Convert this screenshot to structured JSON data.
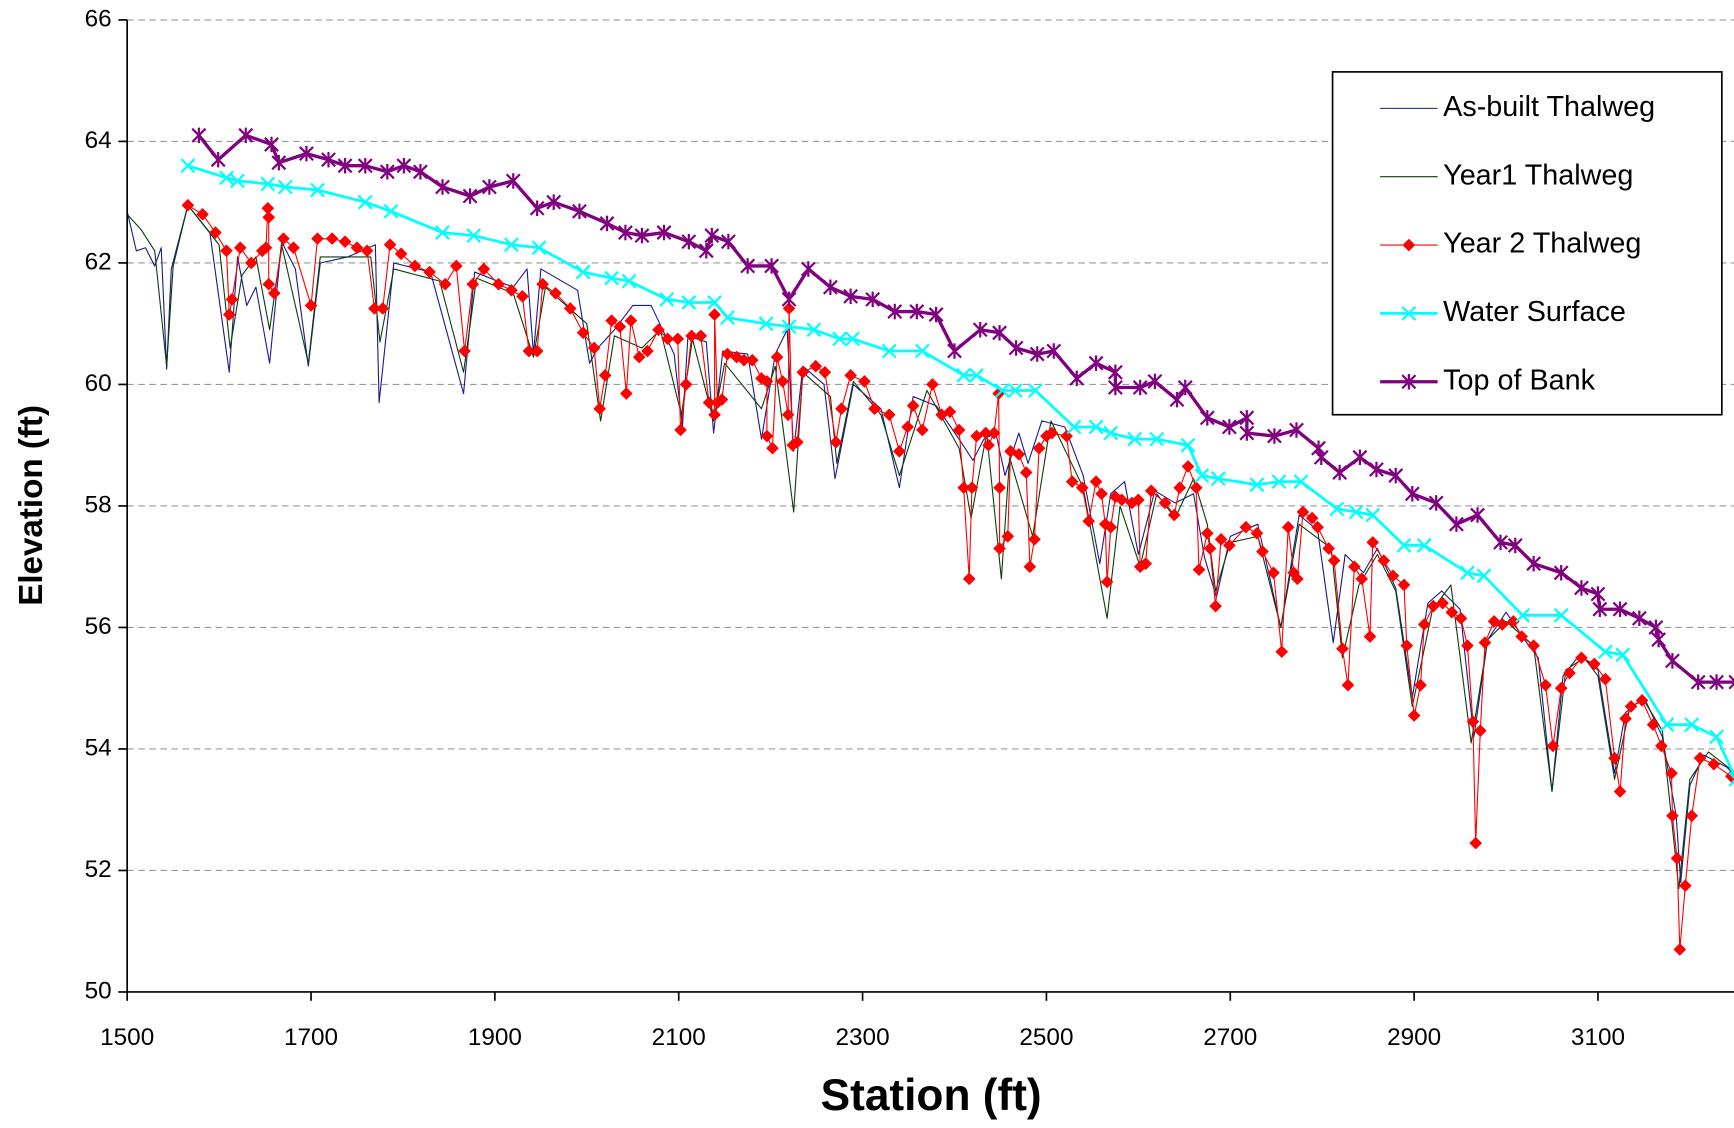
{
  "chart_data": {
    "type": "line",
    "x_label": "Station (ft)",
    "y_label": "Elevation (ft)",
    "xlim": [
      1500,
      3250
    ],
    "xticks": [
      1500,
      1700,
      1900,
      2100,
      2300,
      2500,
      2700,
      2900,
      3100
    ],
    "ylim": [
      50,
      66
    ],
    "yticks": [
      50,
      52,
      54,
      56,
      58,
      60,
      62,
      64,
      66
    ],
    "grid": true,
    "legend": "upper right",
    "series": [
      {
        "name": "As-built Thalweg",
        "color": "#1a1a8c",
        "width": 1,
        "marker": null,
        "x": [
          1500,
          1510,
          1520,
          1530,
          1537,
          1543,
          1548,
          1566,
          1590,
          1611,
          1620,
          1630,
          1640,
          1655,
          1668,
          1683,
          1697,
          1710,
          1740,
          1770,
          1774,
          1790,
          1830,
          1866,
          1878,
          1920,
          1935,
          1942,
          1950,
          1990,
          2003,
          2012,
          2030,
          2050,
          2070,
          2095,
          2104,
          2110,
          2130,
          2138,
          2148,
          2175,
          2190,
          2205,
          2218,
          2225,
          2235,
          2258,
          2270,
          2290,
          2320,
          2340,
          2355,
          2380,
          2405,
          2420,
          2432,
          2445,
          2455,
          2470,
          2480,
          2495,
          2520,
          2540,
          2558,
          2570,
          2585,
          2600,
          2618,
          2640,
          2660,
          2672,
          2685,
          2700,
          2730,
          2755,
          2775,
          2795,
          2812,
          2825,
          2845,
          2860,
          2880,
          2898,
          2915,
          2930,
          2950,
          2965,
          2980,
          3000,
          3020,
          3035,
          3050,
          3062,
          3080,
          3100,
          3118,
          3130,
          3150,
          3170,
          3185,
          3190,
          3200,
          3215,
          3240,
          3250
        ],
        "values": [
          62.85,
          62.2,
          62.25,
          61.95,
          62.25,
          60.25,
          61.9,
          62.95,
          62.5,
          60.2,
          62.1,
          61.3,
          61.6,
          60.35,
          62.35,
          61.9,
          60.3,
          62.0,
          62.1,
          62.3,
          59.7,
          62.0,
          61.85,
          59.85,
          61.85,
          61.6,
          61.9,
          60.5,
          61.9,
          61.55,
          60.35,
          60.6,
          60.9,
          61.3,
          61.3,
          60.5,
          59.3,
          60.8,
          60.7,
          59.2,
          60.55,
          60.5,
          59.1,
          60.5,
          60.9,
          58.9,
          60.3,
          60.0,
          58.45,
          60.0,
          59.6,
          58.3,
          59.8,
          59.65,
          59.1,
          58.75,
          59.1,
          59.2,
          58.5,
          59.2,
          58.7,
          59.4,
          59.3,
          58.5,
          57.05,
          58.2,
          58.4,
          57.2,
          58.25,
          58.05,
          58.2,
          57.15,
          56.5,
          57.5,
          57.7,
          56.0,
          57.85,
          57.6,
          55.75,
          57.2,
          56.9,
          57.3,
          56.65,
          54.85,
          56.4,
          56.6,
          56.3,
          54.2,
          55.8,
          56.25,
          55.8,
          55.5,
          53.3,
          55.2,
          55.55,
          55.3,
          53.6,
          54.6,
          54.85,
          54.2,
          52.9,
          51.8,
          53.4,
          53.9,
          53.7,
          53.55
        ]
      },
      {
        "name": "Year1 Thalweg",
        "color": "#0b3d0b",
        "width": 1,
        "marker": null,
        "x": [
          1500,
          1515,
          1530,
          1543,
          1550,
          1566,
          1600,
          1612,
          1625,
          1640,
          1655,
          1668,
          1697,
          1710,
          1765,
          1775,
          1790,
          1840,
          1866,
          1880,
          1920,
          1942,
          1955,
          2000,
          2015,
          2030,
          2060,
          2080,
          2103,
          2115,
          2138,
          2150,
          2190,
          2205,
          2225,
          2235,
          2265,
          2272,
          2290,
          2320,
          2340,
          2370,
          2405,
          2418,
          2435,
          2451,
          2460,
          2485,
          2505,
          2540,
          2566,
          2580,
          2602,
          2620,
          2640,
          2660,
          2675,
          2684,
          2700,
          2730,
          2755,
          2775,
          2810,
          2822,
          2840,
          2860,
          2880,
          2898,
          2920,
          2940,
          2962,
          2980,
          3000,
          3030,
          3050,
          3065,
          3085,
          3100,
          3118,
          3135,
          3150,
          3170,
          3188,
          3200,
          3220,
          3250
        ],
        "values": [
          62.8,
          62.55,
          62.2,
          60.3,
          61.95,
          62.95,
          62.3,
          60.6,
          61.8,
          62.1,
          60.9,
          62.3,
          60.35,
          62.1,
          62.1,
          60.7,
          61.9,
          61.7,
          60.2,
          61.75,
          61.5,
          60.45,
          61.6,
          61.0,
          59.4,
          60.8,
          60.6,
          60.9,
          59.5,
          60.75,
          59.4,
          60.35,
          59.6,
          60.3,
          57.9,
          60.2,
          59.8,
          58.7,
          60.05,
          59.5,
          58.5,
          59.9,
          58.95,
          57.8,
          59.2,
          56.8,
          58.8,
          57.5,
          59.4,
          58.3,
          56.15,
          58.0,
          57.0,
          58.2,
          57.8,
          58.45,
          57.7,
          56.6,
          57.4,
          57.5,
          56.0,
          57.7,
          57.3,
          55.5,
          56.7,
          57.2,
          56.6,
          54.7,
          56.3,
          56.7,
          54.1,
          55.8,
          56.1,
          55.7,
          53.3,
          55.3,
          55.5,
          55.2,
          53.5,
          54.7,
          54.8,
          54.3,
          51.7,
          53.5,
          53.95,
          53.6
        ]
      },
      {
        "name": "Year 2 Thalweg",
        "color": "#ff0000",
        "width": 1,
        "marker": "diamond",
        "x": [
          1566,
          1582,
          1596,
          1608,
          1611,
          1614,
          1623,
          1635,
          1647,
          1651,
          1653,
          1654,
          1654,
          1660,
          1670,
          1681,
          1700,
          1707,
          1723,
          1737,
          1750,
          1761,
          1769,
          1778,
          1786,
          1798,
          1813,
          1829,
          1846,
          1858,
          1867,
          1876,
          1888,
          1904,
          1918,
          1930,
          1937,
          1946,
          1952,
          1966,
          1982,
          1996,
          2008,
          2014,
          2020,
          2027,
          2036,
          2043,
          2048,
          2057,
          2066,
          2078,
          2088,
          2099,
          2102,
          2108,
          2114,
          2124,
          2133,
          2139,
          2139,
          2142,
          2147,
          2153,
          2163,
          2171,
          2180,
          2190,
          2196,
          2196,
          2202,
          2207,
          2213,
          2219,
          2220,
          2224,
          2229,
          2235,
          2249,
          2259,
          2271,
          2277,
          2287,
          2302,
          2313,
          2329,
          2340,
          2349,
          2355,
          2365,
          2376,
          2386,
          2395,
          2405,
          2410,
          2416,
          2419,
          2424,
          2434,
          2437,
          2443,
          2448,
          2449,
          2449,
          2458,
          2461,
          2470,
          2478,
          2482,
          2487,
          2492,
          2500,
          2506,
          2522,
          2528,
          2539,
          2546,
          2554,
          2560,
          2564,
          2566,
          2570,
          2575,
          2582,
          2593,
          2600,
          2602,
          2608,
          2614,
          2629,
          2639,
          2645,
          2654,
          2663,
          2666,
          2675,
          2678,
          2684,
          2690,
          2699,
          2717,
          2729,
          2735,
          2747,
          2756,
          2763,
          2769,
          2773,
          2779,
          2789,
          2795,
          2807,
          2813,
          2822,
          2828,
          2835,
          2843,
          2852,
          2855,
          2867,
          2877,
          2889,
          2892,
          2900,
          2907,
          2911,
          2921,
          2931,
          2941,
          2951,
          2958,
          2964,
          2967,
          2972,
          2977,
          2987,
          2996,
          3008,
          3017,
          3030,
          3043,
          3051,
          3060,
          3069,
          3082,
          3096,
          3108,
          3118,
          3124,
          3130,
          3136,
          3148,
          3160,
          3169,
          3180,
          3181,
          3186,
          3189,
          3195,
          3202,
          3211,
          3226,
          3245
        ],
        "values": [
          62.95,
          62.8,
          62.5,
          62.2,
          61.15,
          61.4,
          62.25,
          62.0,
          62.2,
          62.25,
          62.9,
          62.75,
          61.65,
          61.5,
          62.4,
          62.25,
          61.3,
          62.4,
          62.4,
          62.35,
          62.25,
          62.2,
          61.25,
          61.25,
          62.3,
          62.15,
          61.95,
          61.85,
          61.65,
          61.95,
          60.55,
          61.65,
          61.9,
          61.65,
          61.55,
          61.45,
          60.55,
          60.55,
          61.65,
          61.5,
          61.25,
          60.85,
          60.6,
          59.6,
          60.15,
          61.05,
          60.95,
          59.85,
          61.05,
          60.45,
          60.55,
          60.9,
          60.75,
          60.75,
          59.25,
          60.0,
          60.8,
          60.8,
          59.7,
          59.5,
          61.15,
          59.7,
          59.75,
          60.5,
          60.45,
          60.4,
          60.4,
          60.1,
          60.05,
          59.15,
          58.95,
          60.45,
          60.05,
          59.5,
          61.25,
          59.0,
          59.05,
          60.2,
          60.3,
          60.2,
          59.05,
          59.6,
          60.15,
          60.05,
          59.6,
          59.5,
          58.9,
          59.3,
          59.65,
          59.25,
          60.0,
          59.5,
          59.55,
          59.25,
          58.3,
          56.8,
          58.3,
          59.15,
          59.2,
          59.0,
          59.2,
          59.85,
          58.3,
          57.3,
          57.5,
          58.9,
          58.85,
          58.55,
          57.0,
          57.45,
          58.95,
          59.15,
          59.2,
          59.15,
          58.4,
          58.3,
          57.75,
          58.4,
          58.2,
          57.7,
          56.75,
          57.65,
          58.15,
          58.1,
          58.05,
          58.1,
          57.0,
          57.05,
          58.25,
          58.05,
          57.85,
          58.3,
          58.65,
          58.3,
          56.95,
          57.55,
          57.3,
          56.35,
          57.45,
          57.35,
          57.65,
          57.55,
          57.25,
          56.9,
          55.6,
          57.65,
          56.9,
          56.8,
          57.9,
          57.8,
          57.65,
          57.3,
          57.1,
          55.65,
          55.05,
          57.0,
          56.8,
          55.85,
          57.4,
          57.1,
          56.85,
          56.7,
          55.7,
          54.55,
          55.05,
          56.05,
          56.35,
          56.4,
          56.25,
          56.15,
          55.7,
          54.45,
          52.45,
          54.3,
          55.75,
          56.1,
          56.05,
          56.1,
          55.85,
          55.7,
          55.05,
          54.05,
          55.0,
          55.25,
          55.5,
          55.4,
          55.15,
          53.85,
          53.3,
          54.5,
          54.7,
          54.8,
          54.4,
          54.05,
          53.6,
          52.9,
          52.2,
          50.7,
          51.75,
          52.9,
          53.85,
          53.75,
          53.55
        ]
      },
      {
        "name": "Water Surface",
        "color": "#00ffff",
        "width": 2.5,
        "marker": "x",
        "x": [
          1566,
          1608,
          1620,
          1653,
          1672,
          1707,
          1759,
          1787,
          1843,
          1877,
          1918,
          1948,
          1996,
          2027,
          2046,
          2087,
          2111,
          2139,
          2153,
          2195,
          2220,
          2247,
          2275,
          2289,
          2329,
          2365,
          2410,
          2424,
          2452,
          2466,
          2488,
          2530,
          2554,
          2570,
          2596,
          2620,
          2654,
          2669,
          2687,
          2729,
          2753,
          2777,
          2816,
          2837,
          2855,
          2889,
          2911,
          2958,
          2976,
          3018,
          3060,
          3108,
          3127,
          3175,
          3202,
          3229,
          3250
        ],
        "values": [
          63.6,
          63.4,
          63.35,
          63.3,
          63.25,
          63.2,
          63.0,
          62.85,
          62.5,
          62.45,
          62.3,
          62.25,
          61.85,
          61.75,
          61.7,
          61.4,
          61.35,
          61.35,
          61.1,
          61.0,
          60.95,
          60.9,
          60.75,
          60.75,
          60.55,
          60.55,
          60.15,
          60.15,
          59.9,
          59.9,
          59.9,
          59.3,
          59.3,
          59.2,
          59.1,
          59.1,
          59.0,
          58.5,
          58.45,
          58.35,
          58.4,
          58.4,
          57.95,
          57.9,
          57.85,
          57.35,
          57.35,
          56.9,
          56.85,
          56.2,
          56.2,
          55.6,
          55.55,
          54.4,
          54.4,
          54.2,
          53.5
        ]
      },
      {
        "name": "Top of Bank",
        "color": "#800080",
        "width": 3,
        "marker": "star",
        "x": [
          1578,
          1599,
          1629,
          1657,
          1665,
          1695,
          1719,
          1737,
          1759,
          1783,
          1801,
          1819,
          1843,
          1873,
          1894,
          1920,
          1946,
          1964,
          1992,
          2022,
          2042,
          2060,
          2084,
          2111,
          2130,
          2136,
          2154,
          2175,
          2201,
          2220,
          2241,
          2265,
          2287,
          2311,
          2335,
          2359,
          2380,
          2400,
          2428,
          2449,
          2467,
          2490,
          2508,
          2533,
          2554,
          2575,
          2575,
          2602,
          2618,
          2642,
          2651,
          2675,
          2699,
          2718,
          2718,
          2748,
          2772,
          2796,
          2799,
          2819,
          2841,
          2859,
          2880,
          2898,
          2924,
          2946,
          2969,
          2994,
          3010,
          3030,
          3060,
          3082,
          3100,
          3102,
          3124,
          3145,
          3163,
          3166,
          3181,
          3209,
          3229,
          3250
        ],
        "values": [
          64.1,
          63.7,
          64.1,
          63.95,
          63.65,
          63.8,
          63.7,
          63.6,
          63.6,
          63.5,
          63.6,
          63.5,
          63.25,
          63.1,
          63.25,
          63.35,
          62.9,
          63.0,
          62.85,
          62.65,
          62.5,
          62.45,
          62.5,
          62.35,
          62.2,
          62.45,
          62.35,
          61.95,
          61.95,
          61.4,
          61.9,
          61.6,
          61.45,
          61.4,
          61.2,
          61.2,
          61.15,
          60.55,
          60.9,
          60.85,
          60.6,
          60.5,
          60.55,
          60.1,
          60.35,
          60.2,
          59.95,
          59.95,
          60.05,
          59.75,
          59.95,
          59.45,
          59.3,
          59.45,
          59.2,
          59.15,
          59.25,
          58.95,
          58.8,
          58.55,
          58.8,
          58.6,
          58.5,
          58.2,
          58.05,
          57.7,
          57.85,
          57.4,
          57.35,
          57.05,
          56.9,
          56.65,
          56.55,
          56.3,
          56.3,
          56.15,
          56.0,
          55.8,
          55.45,
          55.1,
          55.1,
          55.1
        ]
      }
    ]
  }
}
